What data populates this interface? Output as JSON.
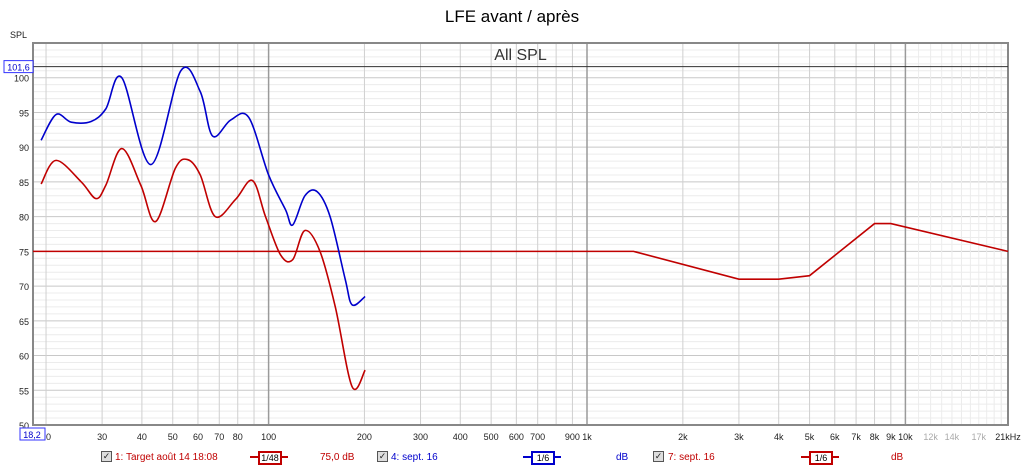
{
  "chart_data": {
    "type": "line",
    "title": "LFE avant / après",
    "inner_title": "All SPL",
    "ylabel": "SPL",
    "xlabel": "",
    "x_scale": "log",
    "xlim": [
      18.2,
      21000
    ],
    "ylim": [
      50,
      105
    ],
    "grid": true,
    "x_start_readout": "18,2",
    "cursor_readout": "101,6",
    "cursor_value": 101.6,
    "y_ticks": [
      "50",
      "55",
      "60",
      "65",
      "70",
      "75",
      "80",
      "85",
      "90",
      "95",
      "100"
    ],
    "x_ticks": [
      {
        "v": 20,
        "l": "20"
      },
      {
        "v": 30,
        "l": "30"
      },
      {
        "v": 40,
        "l": "40"
      },
      {
        "v": 50,
        "l": "50"
      },
      {
        "v": 60,
        "l": "60"
      },
      {
        "v": 70,
        "l": "70"
      },
      {
        "v": 80,
        "l": "80"
      },
      {
        "v": 100,
        "l": "100"
      },
      {
        "v": 200,
        "l": "200"
      },
      {
        "v": 300,
        "l": "300"
      },
      {
        "v": 400,
        "l": "400"
      },
      {
        "v": 500,
        "l": "500"
      },
      {
        "v": 600,
        "l": "600"
      },
      {
        "v": 700,
        "l": "700"
      },
      {
        "v": 900,
        "l": "900"
      },
      {
        "v": 1000,
        "l": "1k"
      },
      {
        "v": 2000,
        "l": "2k"
      },
      {
        "v": 3000,
        "l": "3k"
      },
      {
        "v": 4000,
        "l": "4k"
      },
      {
        "v": 5000,
        "l": "5k"
      },
      {
        "v": 6000,
        "l": "6k"
      },
      {
        "v": 7000,
        "l": "7k"
      },
      {
        "v": 8000,
        "l": "8k"
      },
      {
        "v": 9000,
        "l": "9k"
      },
      {
        "v": 10000,
        "l": "10k"
      },
      {
        "v": 12000,
        "l": "12k"
      },
      {
        "v": 14000,
        "l": "14k"
      },
      {
        "v": 17000,
        "l": "17k"
      },
      {
        "v": 21000,
        "l": "21kHz"
      }
    ],
    "series": [
      {
        "name": "1: Target août 14 18:08",
        "color": "#c00000",
        "smooth": false,
        "x": [
          18.2,
          1400,
          3000,
          4000,
          5000,
          8000,
          9000,
          21000
        ],
        "y": [
          75,
          75,
          71,
          71,
          71.5,
          79,
          79,
          75
        ]
      },
      {
        "name": "4: sept. 16",
        "color": "#0000cc",
        "smooth": true,
        "x": [
          19.3,
          21.5,
          24,
          27.7,
          30.8,
          34.6,
          42.7,
          53,
          61,
          66.7,
          76,
          86.6,
          100,
          113,
          119,
          130,
          142,
          156,
          174,
          183,
          201
        ],
        "y": [
          91,
          94.7,
          93.6,
          93.7,
          95.5,
          100,
          87.5,
          101,
          98,
          91.6,
          93.9,
          94.3,
          86,
          81,
          78.8,
          83,
          83.6,
          80,
          71,
          67.3,
          68.5
        ]
      },
      {
        "name": "7: sept. 16",
        "color": "#c00000",
        "smooth": true,
        "x": [
          19.3,
          21.5,
          25.8,
          28.7,
          30.8,
          34.6,
          39.7,
          44.2,
          51,
          55.8,
          61,
          68,
          78.8,
          89,
          97.8,
          109,
          119,
          130,
          145,
          162,
          183,
          201
        ],
        "y": [
          84.7,
          88.1,
          85,
          82.6,
          84.5,
          89.8,
          84.5,
          79.3,
          87,
          88.2,
          86,
          80,
          82.5,
          85.2,
          80,
          74.5,
          73.8,
          78,
          75,
          67,
          55.5,
          57.9
        ]
      }
    ]
  },
  "legend": [
    {
      "label": "1: Target août 14 18:08",
      "smoothing": "1/48",
      "value": "75,0 dB",
      "color": "#c00000",
      "checked": true,
      "check": "✓"
    },
    {
      "label": "4: sept. 16",
      "smoothing": "1/6",
      "value": "dB",
      "color": "#0000cc",
      "checked": true,
      "check": "✓"
    },
    {
      "label": "7: sept. 16",
      "smoothing": "1/6",
      "value": "dB",
      "color": "#c00000",
      "checked": true,
      "check": "✓"
    }
  ]
}
